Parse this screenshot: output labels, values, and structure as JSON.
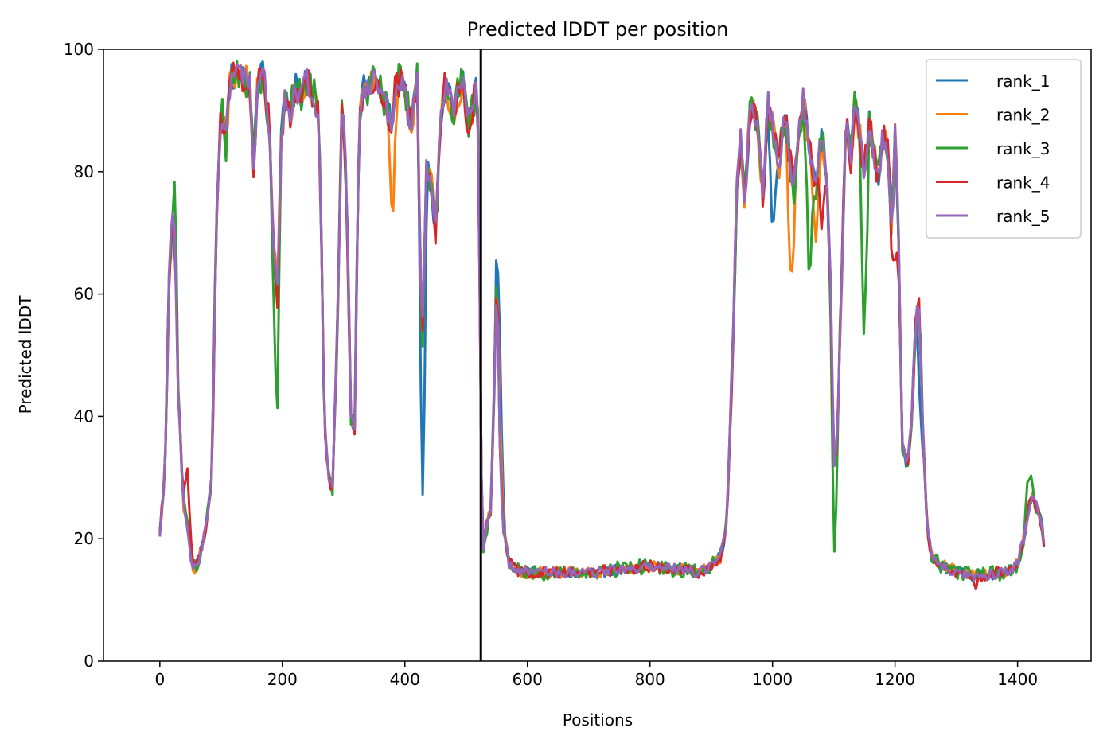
{
  "chart_data": {
    "type": "line",
    "title": "Predicted lDDT per position",
    "xlabel": "Positions",
    "ylabel": "Predicted lDDT",
    "xlim": [
      -92,
      1520
    ],
    "ylim": [
      0,
      100
    ],
    "xticks": [
      0,
      200,
      400,
      600,
      800,
      1000,
      1200,
      1400
    ],
    "yticks": [
      0,
      20,
      40,
      60,
      80,
      100
    ],
    "grid": false,
    "legend_position": "top-right",
    "vline_x": 524,
    "series": [
      {
        "name": "rank_1",
        "color": "#1f77b4"
      },
      {
        "name": "rank_2",
        "color": "#ff7f0e"
      },
      {
        "name": "rank_3",
        "color": "#2ca02c"
      },
      {
        "name": "rank_4",
        "color": "#d62728"
      },
      {
        "name": "rank_5",
        "color": "#9467bd"
      }
    ],
    "base_profile": {
      "x": [
        0,
        8,
        15,
        20,
        25,
        30,
        38,
        45,
        52,
        58,
        65,
        75,
        85,
        92,
        100,
        108,
        115,
        122,
        130,
        140,
        148,
        153,
        160,
        170,
        178,
        185,
        192,
        198,
        205,
        212,
        220,
        230,
        240,
        250,
        258,
        263,
        268,
        275,
        282,
        290,
        298,
        305,
        312,
        318,
        325,
        332,
        340,
        350,
        360,
        370,
        378,
        385,
        392,
        400,
        410,
        420,
        428,
        435,
        442,
        450,
        458,
        465,
        472,
        480,
        488,
        495,
        502,
        510,
        518,
        523,
        526,
        530,
        540,
        546,
        550,
        555,
        560,
        570,
        580,
        600,
        650,
        700,
        750,
        800,
        850,
        880,
        900,
        915,
        925,
        935,
        942,
        948,
        955,
        962,
        970,
        978,
        985,
        992,
        1000,
        1010,
        1020,
        1028,
        1035,
        1042,
        1050,
        1060,
        1070,
        1080,
        1088,
        1095,
        1100,
        1105,
        1112,
        1120,
        1128,
        1135,
        1142,
        1150,
        1158,
        1165,
        1172,
        1180,
        1188,
        1195,
        1200,
        1205,
        1212,
        1220,
        1228,
        1235,
        1240,
        1245,
        1252,
        1260,
        1270,
        1290,
        1310,
        1330,
        1350,
        1370,
        1390,
        1400,
        1410,
        1418,
        1425,
        1432,
        1440,
        1445
      ],
      "y": [
        21,
        30,
        62,
        72,
        68,
        45,
        26,
        22,
        16,
        15,
        17,
        22,
        30,
        70,
        90,
        85,
        95,
        96,
        96,
        95,
        94,
        80,
        96,
        96,
        88,
        70,
        60,
        85,
        93,
        88,
        94,
        92,
        95,
        93,
        90,
        75,
        40,
        30,
        28,
        55,
        94,
        75,
        40,
        38,
        88,
        94,
        93,
        95,
        94,
        90,
        88,
        94,
        95,
        93,
        87,
        95,
        50,
        80,
        80,
        70,
        88,
        94,
        92,
        90,
        93,
        95,
        88,
        90,
        96,
        55,
        18,
        20,
        25,
        45,
        65,
        35,
        22,
        16,
        15,
        14.5,
        14.5,
        14.5,
        15,
        15.5,
        15,
        14.5,
        15.5,
        17,
        22,
        50,
        78,
        85,
        75,
        88,
        90,
        85,
        75,
        92,
        88,
        80,
        90,
        82,
        78,
        85,
        92,
        84,
        78,
        85,
        80,
        60,
        32,
        35,
        60,
        88,
        82,
        92,
        86,
        80,
        88,
        84,
        78,
        86,
        84,
        70,
        86,
        75,
        35,
        32,
        40,
        60,
        58,
        40,
        22,
        17,
        16,
        15,
        14.5,
        14,
        14,
        14.5,
        15,
        16,
        20,
        25,
        27,
        25,
        22,
        17
      ]
    }
  }
}
